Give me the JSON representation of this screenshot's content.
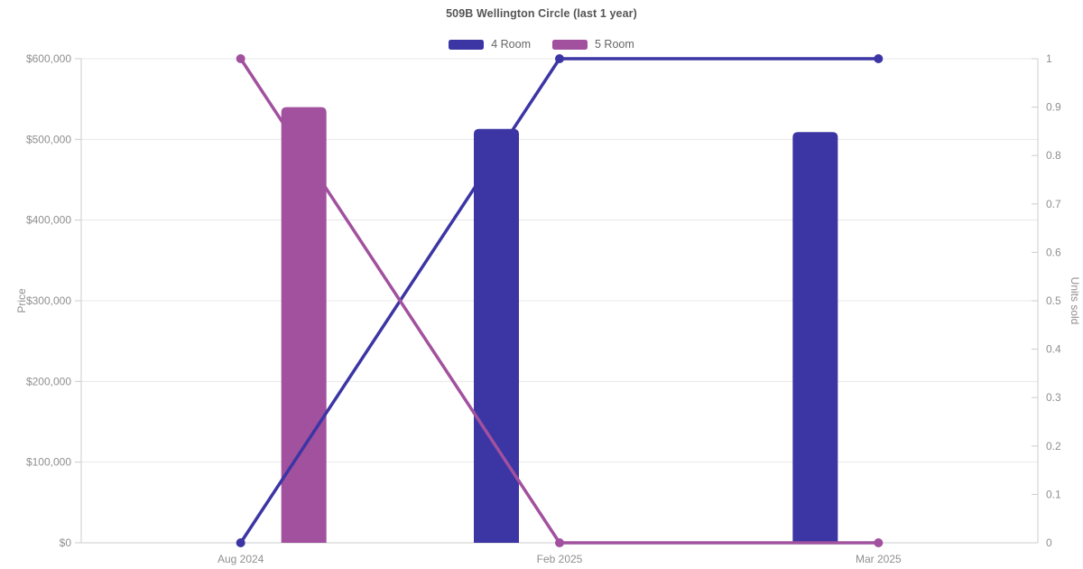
{
  "chart_data": {
    "type": "combo-bar-line",
    "title": "509B Wellington Circle (last 1 year)",
    "categories": [
      "Aug 2024",
      "Feb 2025",
      "Mar 2025"
    ],
    "legend_position": "top",
    "grid": true,
    "left_axis": {
      "label": "Price",
      "min": 0,
      "max": 600000,
      "ticks": [
        {
          "value": 0,
          "label": "$0"
        },
        {
          "value": 100000,
          "label": "$100,000"
        },
        {
          "value": 200000,
          "label": "$200,000"
        },
        {
          "value": 300000,
          "label": "$300,000"
        },
        {
          "value": 400000,
          "label": "$400,000"
        },
        {
          "value": 500000,
          "label": "$500,000"
        },
        {
          "value": 600000,
          "label": "$600,000"
        }
      ]
    },
    "right_axis": {
      "label": "Units sold",
      "min": 0,
      "max": 1,
      "ticks": [
        {
          "value": 0,
          "label": "0"
        },
        {
          "value": 0.1,
          "label": "0.1"
        },
        {
          "value": 0.2,
          "label": "0.2"
        },
        {
          "value": 0.3,
          "label": "0.3"
        },
        {
          "value": 0.4,
          "label": "0.4"
        },
        {
          "value": 0.5,
          "label": "0.5"
        },
        {
          "value": 0.6,
          "label": "0.6"
        },
        {
          "value": 0.7,
          "label": "0.7"
        },
        {
          "value": 0.8,
          "label": "0.8"
        },
        {
          "value": 0.9,
          "label": "0.9"
        },
        {
          "value": 1,
          "label": "1"
        }
      ]
    },
    "series": [
      {
        "name": "4 Room",
        "color": "#3c35a4",
        "bar_prices": [
          null,
          513000,
          509000
        ],
        "line_units_sold": [
          0,
          1,
          1
        ]
      },
      {
        "name": "5 Room",
        "color": "#a1519e",
        "bar_prices": [
          540000,
          null,
          null
        ],
        "line_units_sold": [
          1,
          0,
          0
        ]
      }
    ],
    "colors": {
      "background": "#ffffff",
      "grid_line": "#e8e8e8",
      "axis_line": "#cccccc",
      "tick_text": "#8f8f8f",
      "axis_name_text": "#8f8f8f",
      "title_text": "#555555",
      "legend_text": "#666666"
    }
  }
}
